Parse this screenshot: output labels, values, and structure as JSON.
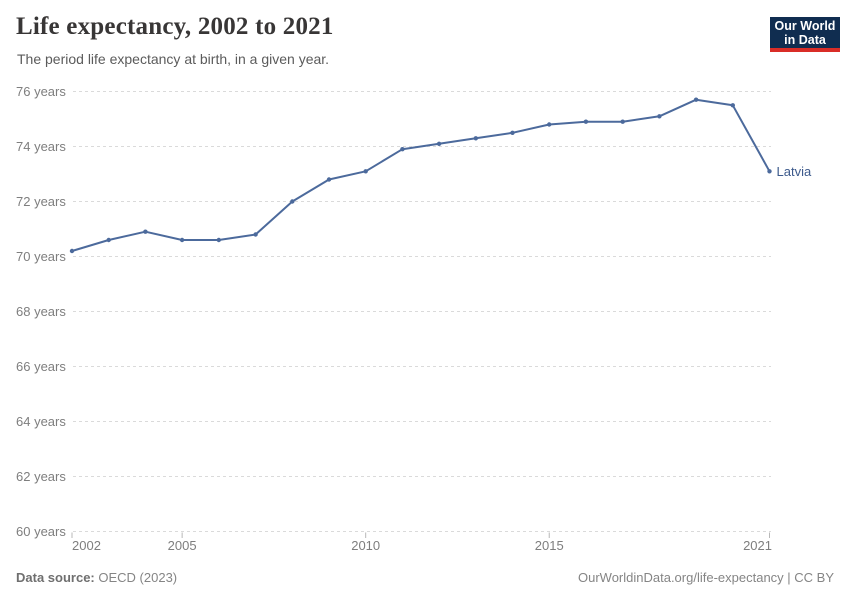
{
  "header": {
    "title": "Life expectancy, 2002 to 2021",
    "subtitle": "The period life expectancy at birth, in a given year.",
    "logo": {
      "line1": "Our World",
      "line2": "in Data",
      "bg_color": "#102d50",
      "accent_color": "#d92d27"
    }
  },
  "chart_data": {
    "type": "line",
    "title": "Life expectancy, 2002 to 2021",
    "subtitle": "The period life expectancy at birth, in a given year.",
    "x": [
      2002,
      2003,
      2004,
      2005,
      2006,
      2007,
      2008,
      2009,
      2010,
      2011,
      2012,
      2013,
      2014,
      2015,
      2016,
      2017,
      2018,
      2019,
      2020,
      2021
    ],
    "series": [
      {
        "name": "Latvia",
        "color": "#4C6A9C",
        "label_color": "#3d5a8c",
        "values": [
          70.2,
          70.6,
          70.9,
          70.6,
          70.6,
          70.8,
          72.0,
          72.8,
          73.1,
          73.9,
          74.1,
          74.3,
          74.5,
          74.8,
          74.9,
          74.9,
          75.1,
          75.7,
          75.5,
          73.1
        ]
      }
    ],
    "xlim": [
      2002,
      2021
    ],
    "ylim": [
      60,
      76
    ],
    "yticks": [
      60,
      62,
      64,
      66,
      68,
      70,
      72,
      74,
      76
    ],
    "ytick_suffix": " years",
    "xticks": [
      2002,
      2005,
      2010,
      2015,
      2021
    ],
    "xlabel": "",
    "ylabel": "",
    "grid": "horizontal-dashed",
    "legend_position": "line-end-label",
    "gridline_color": "#dadada",
    "axis_text_color": "#7e7e7e"
  },
  "footer": {
    "datasource_label": "Data source:",
    "datasource_value": "OECD (2023)",
    "attribution": "OurWorldinData.org/life-expectancy | CC BY"
  }
}
